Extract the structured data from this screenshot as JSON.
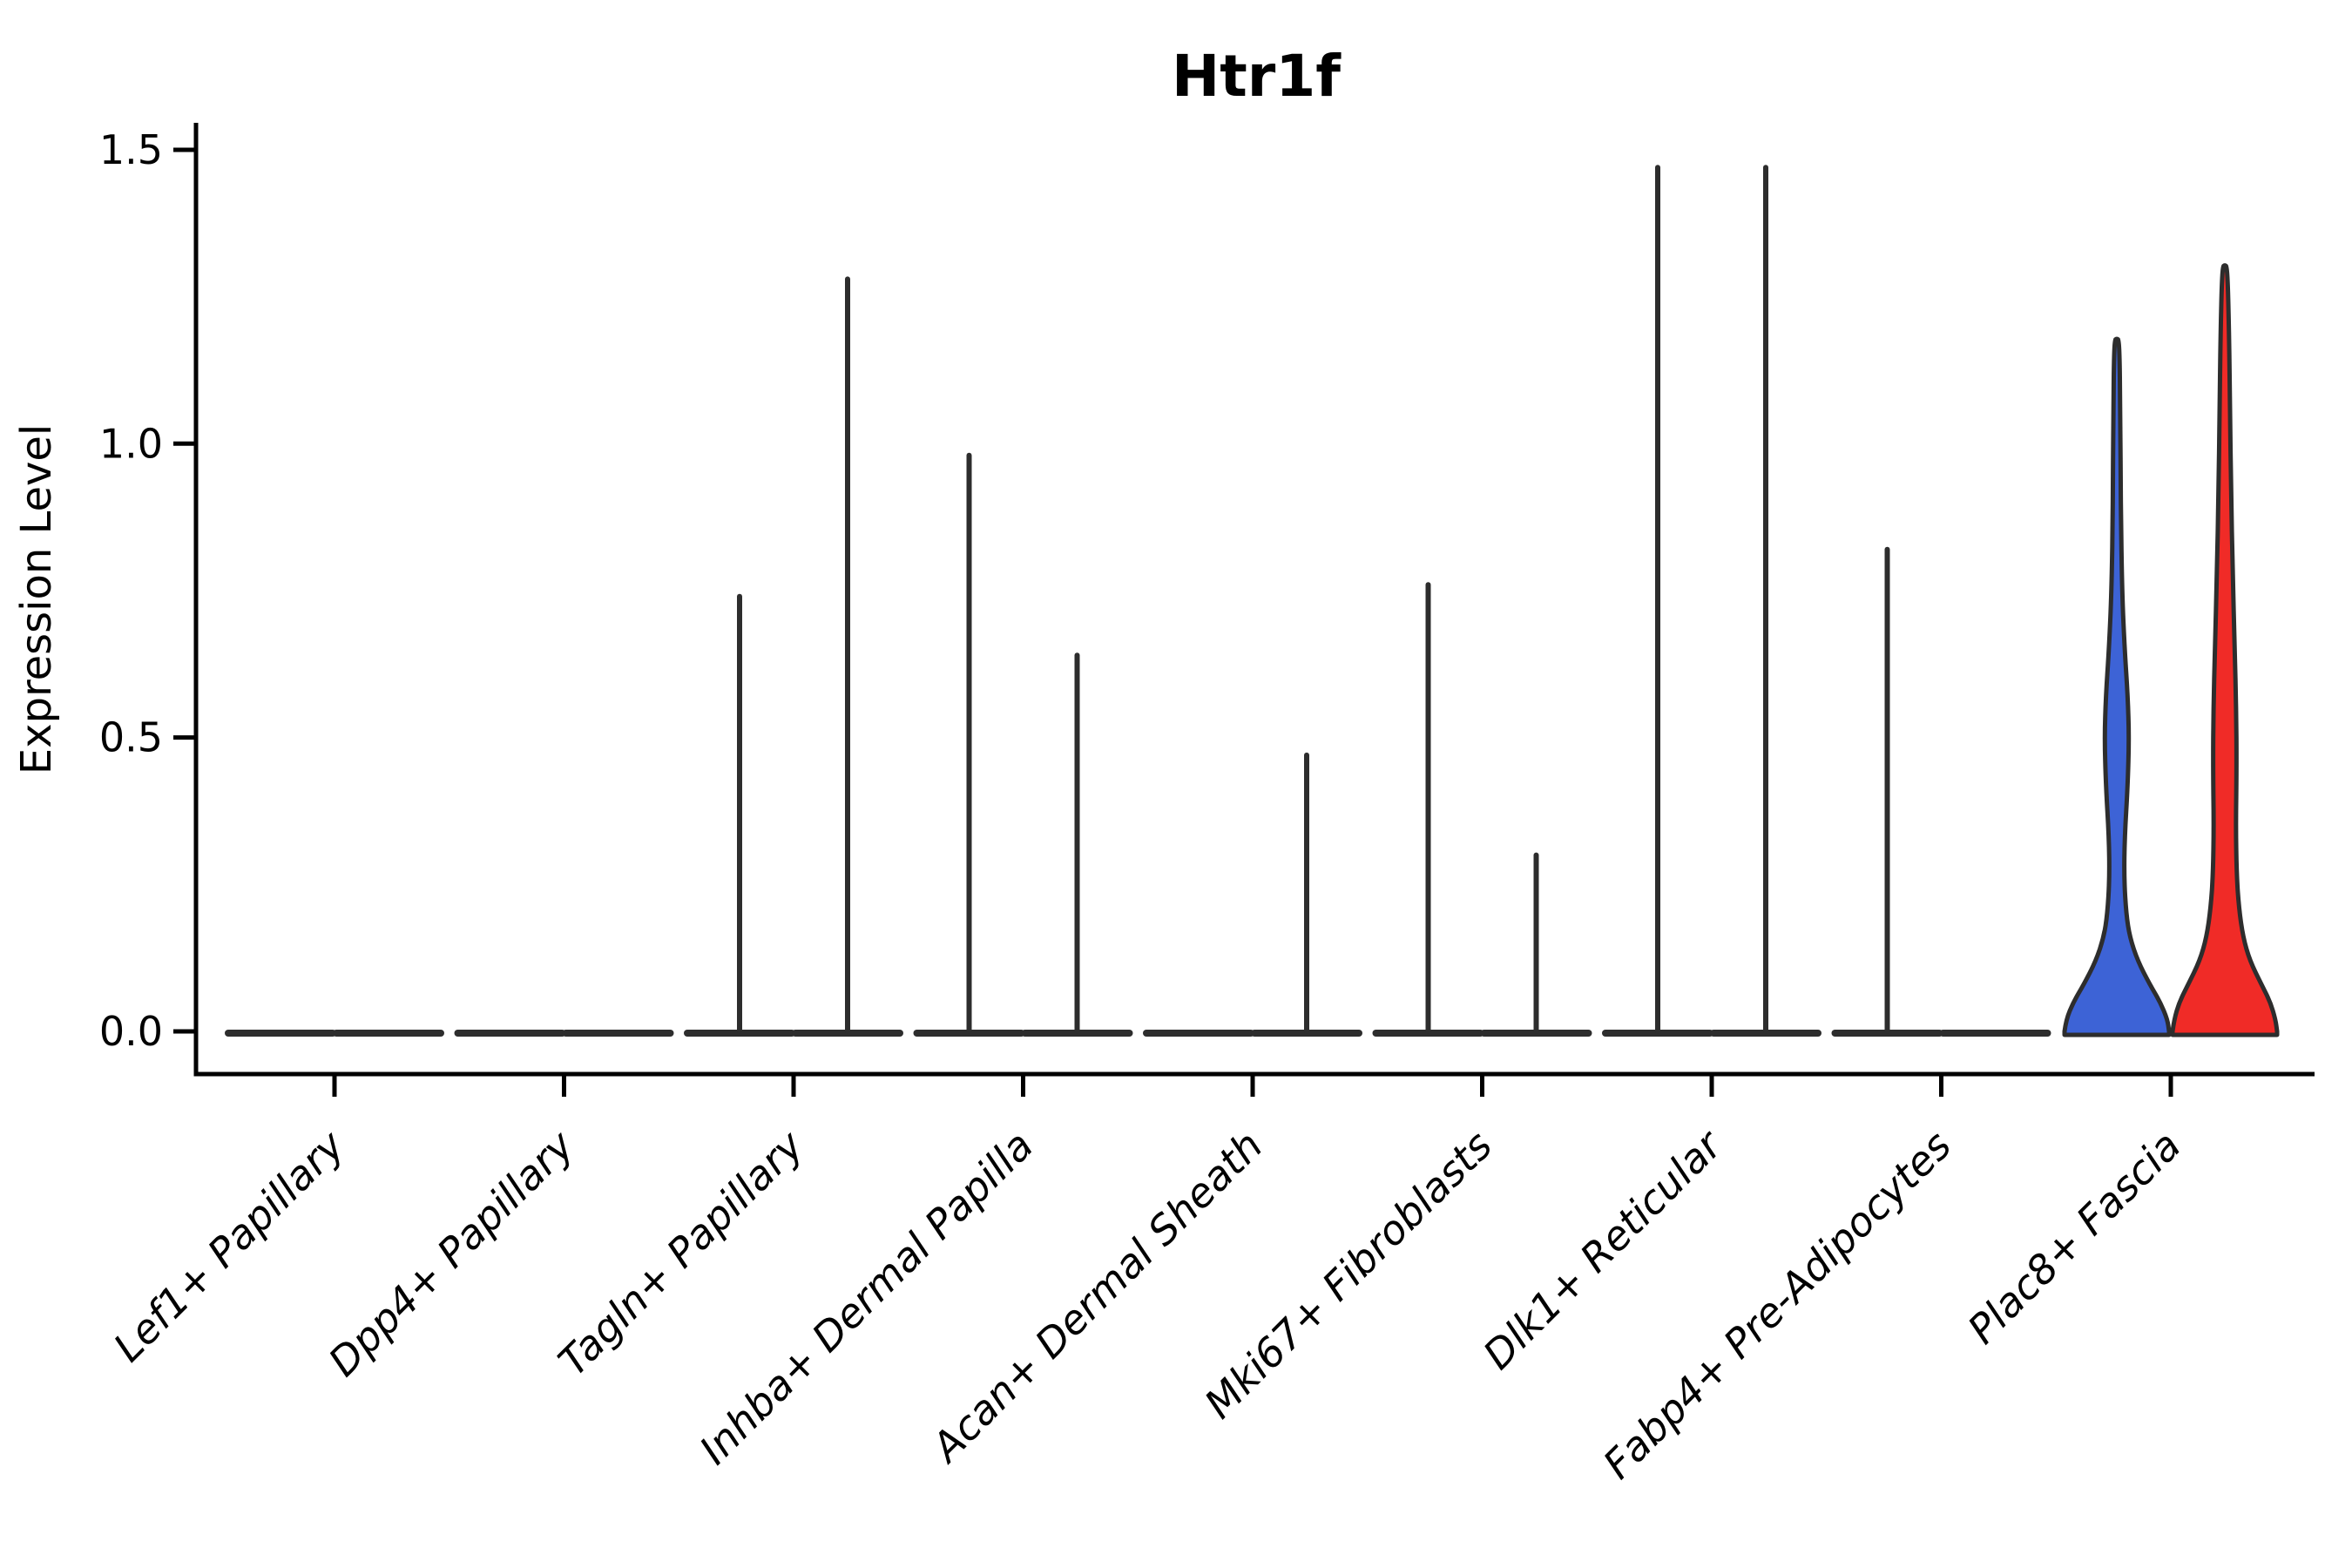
{
  "chart_data": {
    "type": "violin",
    "title": "Htr1f",
    "ylabel": "Expression Level",
    "xlabel": "",
    "ylim": [
      0,
      1.5
    ],
    "grid": false,
    "legend": "none",
    "yticks": [
      {
        "value": 0.0,
        "label": "0.0"
      },
      {
        "value": 0.5,
        "label": "0.5"
      },
      {
        "value": 1.0,
        "label": "1.0"
      },
      {
        "value": 1.5,
        "label": "1.5"
      }
    ],
    "categories": [
      "Lef1+ Papillary",
      "Dpp4+ Papillary",
      "Tagln+ Papillary",
      "Inhba+ Dermal Papilla",
      "Acan+ Dermal Sheath",
      "Mki67+ Fibroblasts",
      "Dlk1+ Reticular",
      "Fabp4+ Pre-Adipocytes",
      "Plac8+ Fascia"
    ],
    "groups": [
      {
        "position": "left",
        "color": "#3d63d6"
      },
      {
        "position": "right",
        "color": "#f02b27"
      }
    ],
    "outline_color": "#2d2d2d",
    "violins": [
      {
        "category": "Lef1+ Papillary",
        "side": "left",
        "max_expression": 0
      },
      {
        "category": "Lef1+ Papillary",
        "side": "right",
        "max_expression": 0
      },
      {
        "category": "Dpp4+ Papillary",
        "side": "left",
        "max_expression": 0
      },
      {
        "category": "Dpp4+ Papillary",
        "side": "right",
        "max_expression": 0
      },
      {
        "category": "Tagln+ Papillary",
        "side": "left",
        "max_expression": 0.74
      },
      {
        "category": "Tagln+ Papillary",
        "side": "right",
        "max_expression": 1.28
      },
      {
        "category": "Inhba+ Dermal Papilla",
        "side": "left",
        "max_expression": 0.98
      },
      {
        "category": "Inhba+ Dermal Papilla",
        "side": "right",
        "max_expression": 0.64
      },
      {
        "category": "Acan+ Dermal Sheath",
        "side": "left",
        "max_expression": 0
      },
      {
        "category": "Acan+ Dermal Sheath",
        "side": "right",
        "max_expression": 0.47
      },
      {
        "category": "Mki67+ Fibroblasts",
        "side": "left",
        "max_expression": 0.76
      },
      {
        "category": "Mki67+ Fibroblasts",
        "side": "right",
        "max_expression": 0.3
      },
      {
        "category": "Dlk1+ Reticular",
        "side": "left",
        "max_expression": 1.47
      },
      {
        "category": "Dlk1+ Reticular",
        "side": "right",
        "max_expression": 1.47
      },
      {
        "category": "Fabp4+ Pre-Adipocytes",
        "side": "left",
        "max_expression": 0.82
      },
      {
        "category": "Fabp4+ Pre-Adipocytes",
        "side": "right",
        "max_expression": 0
      },
      {
        "category": "Plac8+ Fascia",
        "side": "left",
        "max_expression": 1.175,
        "filled": true,
        "fill": "#3d63d6",
        "profile": "blue"
      },
      {
        "category": "Plac8+ Fascia",
        "side": "right",
        "max_expression": 1.3,
        "filled": true,
        "fill": "#f02b27",
        "profile": "red"
      }
    ],
    "kde_profiles": {
      "blue": [
        [
          0,
          1
        ],
        [
          0.02,
          0.97
        ],
        [
          0.05,
          0.83
        ],
        [
          0.08,
          0.63
        ],
        [
          0.12,
          0.4
        ],
        [
          0.16,
          0.25
        ],
        [
          0.2,
          0.18
        ],
        [
          0.26,
          0.14
        ],
        [
          0.33,
          0.15
        ],
        [
          0.42,
          0.21
        ],
        [
          0.5,
          0.235
        ],
        [
          0.57,
          0.21
        ],
        [
          0.65,
          0.15
        ],
        [
          0.75,
          0.1
        ],
        [
          0.9,
          0.075
        ],
        [
          1.05,
          0.067
        ],
        [
          1.175,
          0.05
        ]
      ],
      "red": [
        [
          0,
          1
        ],
        [
          0.02,
          0.97
        ],
        [
          0.05,
          0.87
        ],
        [
          0.08,
          0.7
        ],
        [
          0.12,
          0.48
        ],
        [
          0.16,
          0.35
        ],
        [
          0.21,
          0.27
        ],
        [
          0.27,
          0.225
        ],
        [
          0.35,
          0.21
        ],
        [
          0.45,
          0.225
        ],
        [
          0.55,
          0.217
        ],
        [
          0.65,
          0.19
        ],
        [
          0.78,
          0.15
        ],
        [
          0.92,
          0.12
        ],
        [
          1.05,
          0.1
        ],
        [
          1.18,
          0.083
        ],
        [
          1.3,
          0.05
        ]
      ]
    }
  }
}
